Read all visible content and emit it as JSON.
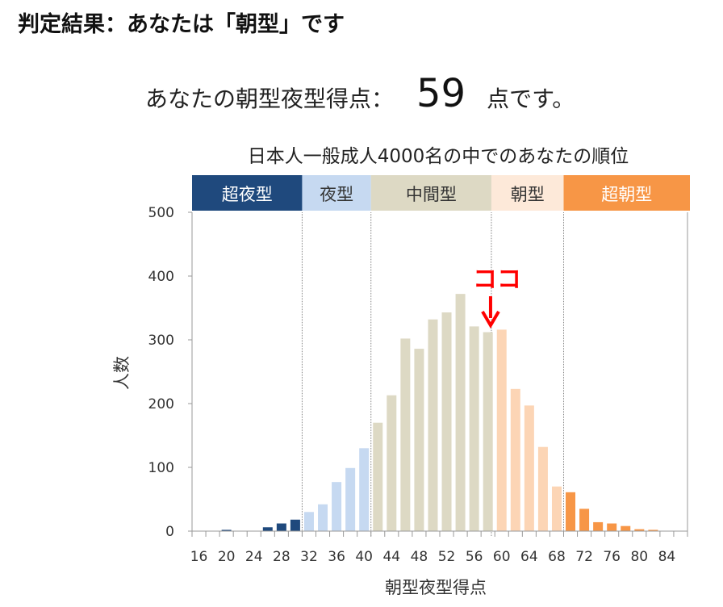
{
  "heading": "判定結果：あなたは「朝型」です",
  "score": {
    "prefix": "あなたの朝型夜型得点：",
    "value": "59",
    "suffix": "点です。"
  },
  "chart_data": {
    "type": "bar",
    "title": "日本人一般成人4000名の中でのあなたの順位",
    "xlabel": "朝型夜型得点",
    "ylabel": "人数",
    "ylim": [
      0,
      500
    ],
    "yticks": [
      0,
      100,
      200,
      300,
      400,
      500
    ],
    "xticks": [
      16,
      20,
      24,
      28,
      32,
      36,
      40,
      44,
      48,
      52,
      56,
      60,
      64,
      68,
      72,
      76,
      80,
      84
    ],
    "x": [
      16,
      18,
      20,
      22,
      24,
      26,
      28,
      30,
      32,
      34,
      36,
      38,
      40,
      42,
      44,
      46,
      48,
      50,
      52,
      54,
      56,
      58,
      60,
      62,
      64,
      66,
      68,
      70,
      72,
      74,
      76,
      78,
      80,
      82,
      84,
      86
    ],
    "values": [
      0,
      0,
      2,
      0,
      0,
      6,
      12,
      18,
      30,
      42,
      77,
      99,
      130,
      170,
      213,
      302,
      286,
      332,
      343,
      372,
      321,
      312,
      316,
      223,
      197,
      132,
      70,
      61,
      35,
      14,
      12,
      8,
      3,
      2,
      0,
      0
    ],
    "grid": false,
    "bands": [
      {
        "label": "超夜型",
        "from": 15,
        "to": 31,
        "color": "#1f497d",
        "text_color": "#ffffff"
      },
      {
        "label": "夜型",
        "from": 31,
        "to": 41,
        "color": "#c6d9f1",
        "text_color": "#333333"
      },
      {
        "label": "中間型",
        "from": 41,
        "to": 58.5,
        "color": "#ddd9c4",
        "text_color": "#333333"
      },
      {
        "label": "朝型",
        "from": 58.5,
        "to": 69,
        "color": "#fde9d9",
        "text_color": "#333333"
      },
      {
        "label": "超朝型",
        "from": 69,
        "to": 87,
        "color": "#f79646",
        "text_color": "#ffffff"
      }
    ],
    "bar_colors": [
      {
        "from": 15,
        "to": 31,
        "color": "#1f497d"
      },
      {
        "from": 31,
        "to": 41,
        "color": "#c6d9f1"
      },
      {
        "from": 41,
        "to": 59,
        "color": "#ddd9c4"
      },
      {
        "from": 59,
        "to": 69,
        "color": "#fcd5b5"
      },
      {
        "from": 69,
        "to": 87,
        "color": "#f79646"
      }
    ],
    "marker": {
      "label": "ココ",
      "x": 58.5,
      "color": "#ff0000"
    }
  }
}
